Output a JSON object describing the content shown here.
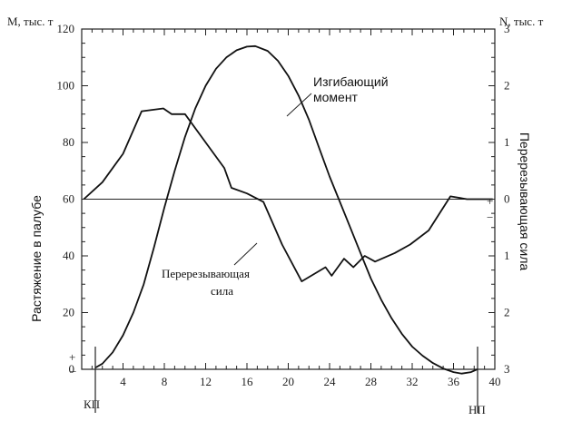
{
  "chart_data": {
    "type": "line",
    "left_axis_title": "M, тыс. т",
    "right_axis_title": "N, тыс. т",
    "left_axis_label": "Растяжение в палубе",
    "right_axis_label": "Перерезывающая сила",
    "xlim": [
      0,
      40
    ],
    "ylim_left": [
      0,
      120
    ],
    "ylim_right": [
      3,
      -3
    ],
    "x_ticks": [
      "4",
      "8",
      "12",
      "16",
      "20",
      "24",
      "28",
      "32",
      "36",
      "40"
    ],
    "y_left_ticks": [
      "0",
      "20",
      "40",
      "60",
      "80",
      "100",
      "120"
    ],
    "y_right_ticks": [
      "3",
      "2",
      "1",
      "0",
      "1",
      "2",
      "3"
    ],
    "sign_marks": {
      "plus_left": "+",
      "minus_left": "−",
      "plus_right": "+",
      "minus_right": "−"
    },
    "station_labels": {
      "start": "КП",
      "end": "НП"
    },
    "annotations": {
      "moment": [
        "Изгибающий",
        "момент"
      ],
      "shear": [
        "Перерезывающая",
        "сила"
      ]
    },
    "grid": false,
    "series": [
      {
        "name": "Изгибающий момент",
        "axis": "left",
        "x": [
          1.3,
          2,
          3,
          4,
          5,
          6,
          7,
          8,
          9,
          10,
          11,
          12,
          13,
          14,
          15,
          16,
          16.8,
          18,
          19,
          20,
          21,
          22,
          23,
          24,
          25,
          26,
          27,
          28,
          29,
          30,
          31,
          32,
          33,
          34,
          35,
          36,
          36.8,
          37.7,
          38.3
        ],
        "y": [
          0.5,
          2,
          6,
          12,
          20,
          30,
          43,
          57,
          70,
          82,
          92,
          100,
          106,
          110,
          112.5,
          113.8,
          114,
          112.3,
          108.8,
          103.5,
          96.5,
          88,
          78,
          68,
          59,
          50,
          41,
          32,
          24.5,
          18,
          12.5,
          8,
          4.8,
          2.2,
          0.3,
          -1,
          -1.5,
          -1,
          0
        ]
      },
      {
        "name": "Перерезывающая сила",
        "axis": "right",
        "x": [
          0.2,
          2,
          4,
          5.8,
          7.9,
          8.7,
          10,
          13.8,
          14.5,
          16,
          17.6,
          19.4,
          21.3,
          23.6,
          24.2,
          25.4,
          26.3,
          27.4,
          28.4,
          30.3,
          31.8,
          33.6,
          35.7,
          37.3,
          39.8
        ],
        "y": [
          0,
          -0.3,
          -0.8,
          -1.55,
          -1.6,
          -1.5,
          -1.5,
          -0.55,
          -0.2,
          -0.1,
          0.05,
          0.8,
          1.45,
          1.2,
          1.35,
          1.05,
          1.2,
          1.0,
          1.1,
          0.95,
          0.8,
          0.55,
          -0.05,
          0,
          0
        ]
      }
    ]
  }
}
